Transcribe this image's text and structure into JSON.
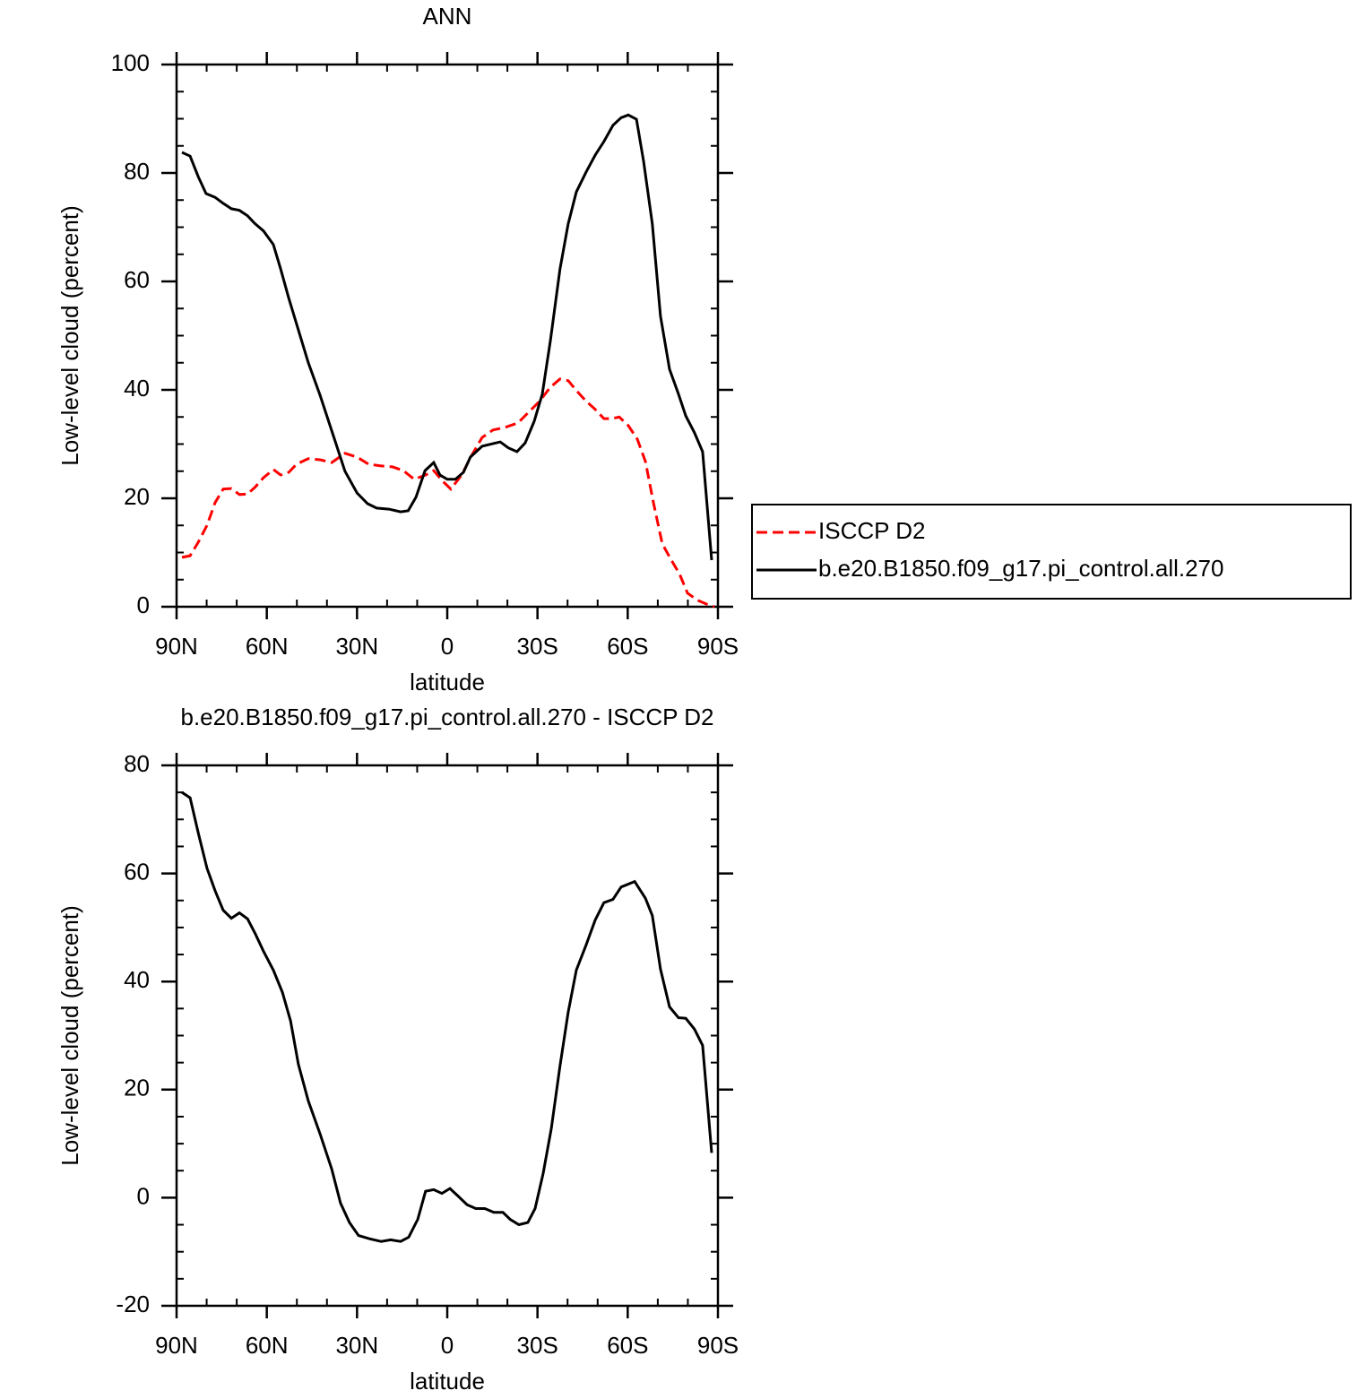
{
  "chart_data": [
    {
      "type": "line",
      "title": "ANN",
      "xlabel": "latitude",
      "ylabel": "Low-level cloud (percent)",
      "xlim": [
        90,
        -90
      ],
      "ylim": [
        0,
        100
      ],
      "xticks": [
        {
          "value": 90,
          "label": "90N"
        },
        {
          "value": 60,
          "label": "60N"
        },
        {
          "value": 30,
          "label": "30N"
        },
        0,
        {
          "value": -30,
          "label": "30S"
        },
        {
          "value": -60,
          "label": "60S"
        },
        {
          "value": -90,
          "label": "90S"
        }
      ],
      "xminorticks": [
        80,
        70,
        50,
        40,
        20,
        10,
        -10,
        -20,
        -40,
        -50,
        -70,
        -80
      ],
      "yticks": [
        0,
        20,
        40,
        60,
        80,
        100
      ],
      "yminorticks": [
        5,
        10,
        15,
        25,
        30,
        35,
        45,
        50,
        55,
        65,
        70,
        75,
        85,
        90,
        95
      ],
      "legend": "right",
      "series": [
        {
          "name": "ISCCP D2",
          "color": "#ff0000",
          "dash": true,
          "x": [
            88.2,
            85.5,
            82.8,
            79.9,
            77.2,
            74.5,
            71.8,
            69.1,
            66.4,
            63.8,
            61.1,
            57.8,
            55.4,
            52.7,
            50.1,
            46.2,
            42.3,
            38.4,
            34,
            30,
            26.2,
            22.3,
            18.2,
            14.6,
            11,
            7.2,
            4.5,
            1.8,
            -1.2,
            -4.8,
            -8,
            -11.6,
            -15.2,
            -19.4,
            -23.5,
            -27.1,
            -30.7,
            -34.3,
            -37.5,
            -40.2,
            -43.2,
            -46.2,
            -49.2,
            -52.1,
            -54.8,
            -57.2,
            -60.2,
            -63.2,
            -65.9,
            -68.5,
            -71.5,
            -74.5,
            -77.2,
            -79.9,
            -83.2,
            -86.2,
            -88.8
          ],
          "values": [
            9.1,
            9.4,
            11.9,
            15,
            19.2,
            21.7,
            21.8,
            20.7,
            20.8,
            22.1,
            23.8,
            25.3,
            24.3,
            24.8,
            26.3,
            27.3,
            27.1,
            26.6,
            28.3,
            27.6,
            26.3,
            26,
            25.8,
            25.1,
            23.5,
            24.3,
            25.1,
            23.3,
            21.7,
            24.3,
            27.8,
            31.2,
            32.6,
            33.1,
            33.9,
            35.9,
            37.9,
            40.5,
            42,
            41.7,
            39.7,
            37.9,
            36.4,
            34.7,
            34.7,
            35,
            33.4,
            30.9,
            26.8,
            19.3,
            11.6,
            8.6,
            6.1,
            2.5,
            1.2,
            0.5,
            0
          ]
        },
        {
          "name": "b.e20.B1850.f09_g17.pi_control.all.270",
          "color": "#000000",
          "dash": false,
          "x": [
            88.2,
            85.5,
            82.8,
            80.2,
            77.2,
            74.5,
            71.8,
            69.1,
            66.4,
            64,
            61.1,
            57.8,
            55.4,
            52.7,
            46.2,
            42.3,
            37.8,
            34,
            30,
            26.5,
            23.5,
            19.4,
            15.5,
            13,
            10.4,
            7.4,
            4.5,
            2.4,
            0,
            -2.7,
            -5.4,
            -7.7,
            -11.6,
            -17.6,
            -20.3,
            -23.2,
            -25.9,
            -28.9,
            -31.6,
            -34.3,
            -37.5,
            -40.2,
            -42.9,
            -46.2,
            -49.2,
            -52.1,
            -55.1,
            -57.8,
            -60.2,
            -62.9,
            -65.3,
            -68.2,
            -70.9,
            -73.9,
            -76.9,
            -79.3,
            -82.2,
            -84.9,
            -87.9
          ],
          "values": [
            83.8,
            83.1,
            79.3,
            76.2,
            75.5,
            74.4,
            73.4,
            73.1,
            72.1,
            70.7,
            69.3,
            66.8,
            62.3,
            56.9,
            45,
            39,
            31.4,
            25,
            21,
            19,
            18.2,
            18,
            17.5,
            17.7,
            20.2,
            25.1,
            26.6,
            24.3,
            23.5,
            23.5,
            24.8,
            27.6,
            29.6,
            30.4,
            29.3,
            28.6,
            30.2,
            34.2,
            39.2,
            49.1,
            62.3,
            70.6,
            76.5,
            80.2,
            83.3,
            85.8,
            88.8,
            90.2,
            90.7,
            89.9,
            82.1,
            70.6,
            53.6,
            43.8,
            39.2,
            35.2,
            32.1,
            28.6,
            8.6
          ]
        }
      ]
    },
    {
      "type": "line",
      "title": "b.e20.B1850.f09_g17.pi_control.all.270 - ISCCP D2",
      "xlabel": "latitude",
      "ylabel": "Low-level cloud (percent)",
      "xlim": [
        90,
        -90
      ],
      "ylim": [
        -20,
        80
      ],
      "xticks": [
        {
          "value": 90,
          "label": "90N"
        },
        {
          "value": 60,
          "label": "60N"
        },
        {
          "value": 30,
          "label": "30N"
        },
        0,
        {
          "value": -30,
          "label": "30S"
        },
        {
          "value": -60,
          "label": "60S"
        },
        {
          "value": -90,
          "label": "90S"
        }
      ],
      "xminorticks": [
        80,
        70,
        50,
        40,
        20,
        10,
        -10,
        -20,
        -40,
        -50,
        -70,
        -80
      ],
      "yticks": [
        -20,
        0,
        20,
        40,
        60,
        80
      ],
      "yminorticks": [
        -15,
        -10,
        -5,
        5,
        10,
        15,
        25,
        30,
        35,
        45,
        50,
        55,
        65,
        70,
        75
      ],
      "series": [
        {
          "color": "#000000",
          "dash": false,
          "x": [
            88.2,
            85.5,
            82.8,
            79.9,
            77.2,
            74.5,
            71.8,
            69.1,
            66.4,
            63.8,
            61.1,
            57.8,
            54.8,
            52.1,
            49.5,
            46.2,
            42.3,
            38.4,
            35.5,
            32.5,
            29.5,
            25.9,
            22,
            18.8,
            15.5,
            12.8,
            9.8,
            7.2,
            4.5,
            1.8,
            -0.9,
            -3.6,
            -6.6,
            -9.5,
            -12.5,
            -15.5,
            -18.5,
            -20.9,
            -23.8,
            -26.8,
            -29.2,
            -31.9,
            -34.6,
            -37.5,
            -40.2,
            -42.9,
            -46.2,
            -49.2,
            -52.1,
            -55.1,
            -57.8,
            -62.3,
            -65.9,
            -68.2,
            -70.9,
            -73.9,
            -76.9,
            -79.3,
            -82.2,
            -84.9,
            -87.9
          ],
          "values": [
            75,
            74,
            67.5,
            61,
            56.8,
            53.2,
            51.7,
            52.7,
            51.6,
            48.8,
            45.6,
            42.1,
            38,
            32.7,
            24.7,
            17.9,
            11.8,
            5.3,
            -1,
            -4.6,
            -7,
            -7.6,
            -8.1,
            -7.8,
            -8.1,
            -7.3,
            -4,
            1.2,
            1.5,
            0.8,
            1.7,
            0.3,
            -1.3,
            -2,
            -2,
            -2.7,
            -2.7,
            -4,
            -5,
            -4.6,
            -2,
            4.5,
            12.8,
            24.4,
            34.3,
            42.1,
            46.8,
            51.4,
            54.6,
            55.2,
            57.5,
            58.5,
            55.4,
            52.2,
            42.3,
            35.3,
            33.3,
            33.2,
            31.2,
            28.2,
            8.3
          ]
        }
      ]
    }
  ]
}
